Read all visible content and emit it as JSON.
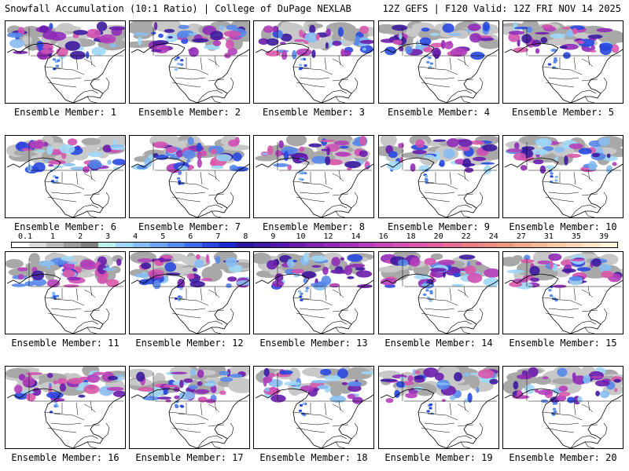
{
  "header": {
    "left": "Snowfall Accumulation (10:1 Ratio) | College of DuPage NEXLAB",
    "right": "12Z GEFS | F120 Valid: 12Z FRI NOV 14 2025"
  },
  "panels": [
    {
      "label": "Ensemble Member: 1"
    },
    {
      "label": "Ensemble Member: 2"
    },
    {
      "label": "Ensemble Member: 3"
    },
    {
      "label": "Ensemble Member: 4"
    },
    {
      "label": "Ensemble Member: 5"
    },
    {
      "label": "Ensemble Member: 6"
    },
    {
      "label": "Ensemble Member: 7"
    },
    {
      "label": "Ensemble Member: 8"
    },
    {
      "label": "Ensemble Member: 9"
    },
    {
      "label": "Ensemble Member: 10"
    },
    {
      "label": "Ensemble Member: 11"
    },
    {
      "label": "Ensemble Member: 12"
    },
    {
      "label": "Ensemble Member: 13"
    },
    {
      "label": "Ensemble Member: 14"
    },
    {
      "label": "Ensemble Member: 15"
    },
    {
      "label": "Ensemble Member: 16"
    },
    {
      "label": "Ensemble Member: 17"
    },
    {
      "label": "Ensemble Member: 18"
    },
    {
      "label": "Ensemble Member: 19"
    },
    {
      "label": "Ensemble Member: 20"
    }
  ],
  "colorbar": {
    "labels": [
      "0.1",
      "1",
      "2",
      "3",
      "4",
      "5",
      "6",
      "7",
      "8",
      "9",
      "10",
      "12",
      "14",
      "16",
      "18",
      "20",
      "22",
      "24",
      "27",
      "31",
      "35",
      "39"
    ],
    "colors": [
      "#ffffff",
      "#dcdcdc",
      "#bdbdbd",
      "#9e9e9e",
      "#7f7f7f",
      "#b8f0ee",
      "#9fd8f5",
      "#86bdf2",
      "#6ea2ef",
      "#5687ea",
      "#3e6ce6",
      "#2848e0",
      "#1c2ad0",
      "#2a1a9a",
      "#3d1a9e",
      "#521aa6",
      "#6a1cac",
      "#7e22b2",
      "#8f2ab6",
      "#a233b8",
      "#b43eba",
      "#c447b8",
      "#cf4fb2",
      "#d858aa",
      "#df62a0",
      "#e36e94",
      "#e67b88",
      "#e98a80",
      "#eb9880",
      "#eea888",
      "#f2b894",
      "#f5c9a2",
      "#f8d8b4",
      "#fbe6c8",
      "#fdf1dc"
    ]
  }
}
